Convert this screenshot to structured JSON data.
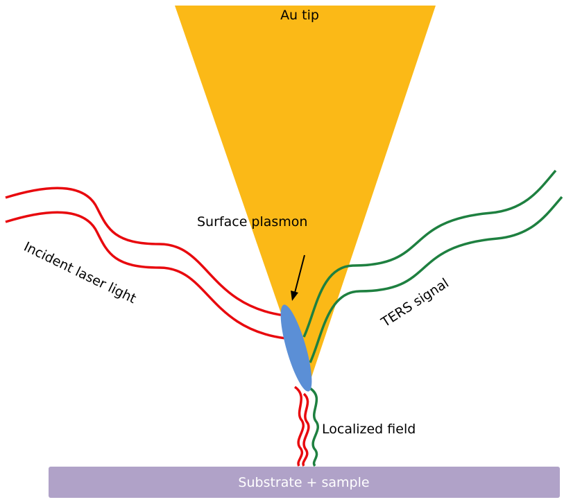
{
  "labels": {
    "tip": "Au tip",
    "plasmon": "Surface plasmon",
    "incident": "Incident laser light",
    "signal": "TERS signal",
    "field": "Localized field",
    "substrate": "Substrate + sample"
  },
  "colors": {
    "tip": "#FBB917",
    "laser": "#E8090E",
    "signal": "#1E8040",
    "plasmon": "#5B8FD6",
    "substrate": "#B0A2C8",
    "arrow": "#000000"
  }
}
